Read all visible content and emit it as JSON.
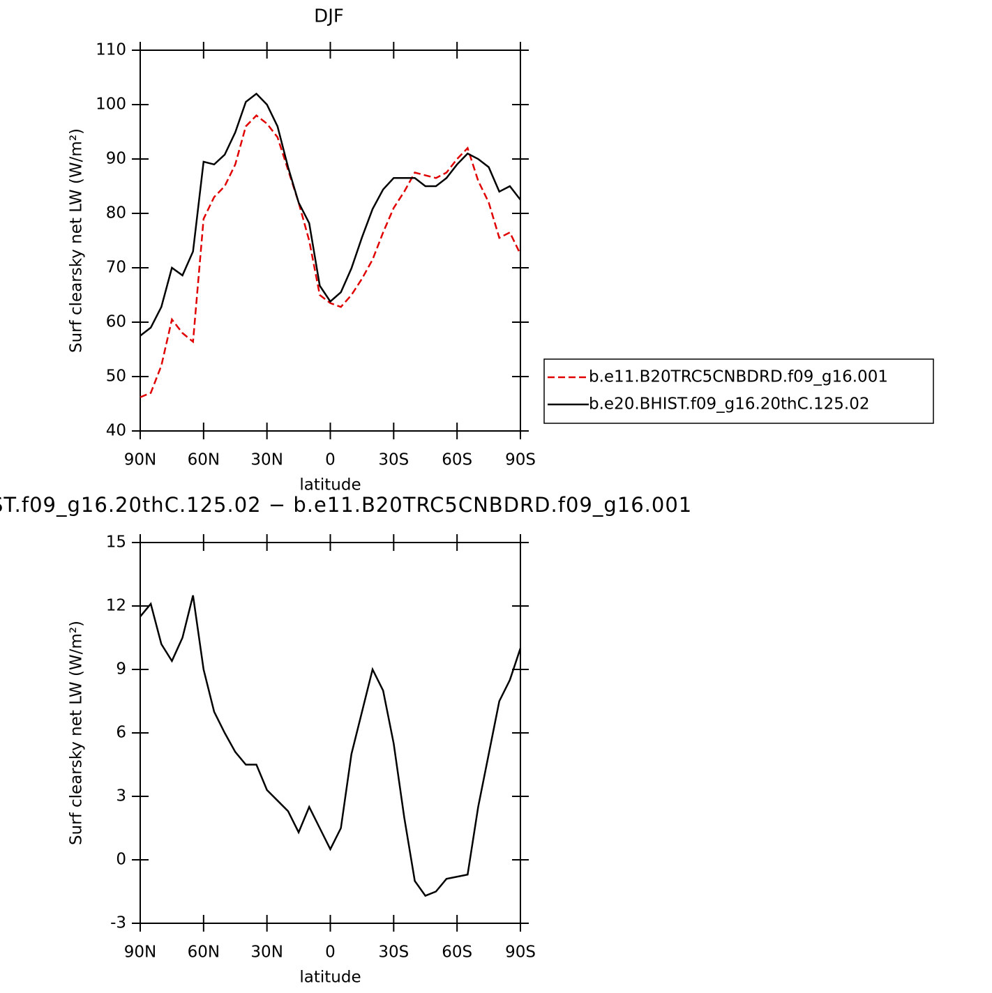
{
  "chart_data": [
    {
      "type": "line",
      "title": "DJF",
      "xlabel": "latitude",
      "ylabel": "Surf clearsky net LW (W/m²)",
      "x": [
        90,
        85,
        80,
        75,
        70,
        65,
        60,
        55,
        50,
        45,
        40,
        35,
        30,
        25,
        20,
        15,
        10,
        5,
        0,
        -5,
        -10,
        -15,
        -20,
        -25,
        -30,
        -35,
        -40,
        -45,
        -50,
        -55,
        -60,
        -65,
        -70,
        -75,
        -80,
        -85,
        -90
      ],
      "series": [
        {
          "name": "b.e11.B20TRC5CNBDRD.f09_g16.001",
          "color": "#e00000",
          "linestyle": "dashed",
          "values": [
            46.2,
            47,
            52,
            60.5,
            58,
            56.4,
            79,
            83,
            85,
            89,
            96,
            98,
            96.5,
            94,
            88,
            82,
            75,
            65,
            63.5,
            62.8,
            65,
            68,
            71.5,
            76.5,
            81,
            84,
            87.5,
            87,
            86.5,
            87.5,
            90,
            92,
            86,
            82,
            75.5,
            76.5,
            72.5
          ]
        },
        {
          "name": "b.e20.BHIST.f09_g16.20thC.125.02",
          "color": "#000000",
          "linestyle": "solid",
          "values": [
            57.5,
            59,
            62.8,
            70,
            68.6,
            73,
            89.5,
            89,
            90.8,
            94.9,
            100.5,
            102,
            100,
            96,
            88.5,
            82,
            78.2,
            66.7,
            63.8,
            65.5,
            69.9,
            75.6,
            80.8,
            84.4,
            86.5,
            86.5,
            86.5,
            85,
            85,
            86.5,
            89,
            91,
            90,
            88.5,
            84,
            85,
            82.5
          ]
        }
      ],
      "xlim": [
        90,
        -90
      ],
      "xticks": [
        {
          "value": 90,
          "label": "90N"
        },
        {
          "value": 60,
          "label": "60N"
        },
        {
          "value": 30,
          "label": "30N"
        },
        0,
        {
          "value": -30,
          "label": "30S"
        },
        {
          "value": -60,
          "label": "60S"
        },
        {
          "value": -90,
          "label": "90S"
        }
      ],
      "ylim": [
        40,
        110
      ],
      "yticks": [
        40,
        50,
        60,
        70,
        80,
        90,
        100,
        110
      ],
      "legend": "right"
    },
    {
      "type": "line",
      "title": "ST.f09_g16.20thC.125.02 − b.e11.B20TRC5CNBDRD.f09_g16.001",
      "xlabel": "latitude",
      "ylabel": "Surf clearsky net LW (W/m²)",
      "x": [
        90,
        85,
        80,
        75,
        70,
        65,
        60,
        55,
        50,
        45,
        40,
        35,
        30,
        25,
        20,
        15,
        10,
        5,
        0,
        -5,
        -10,
        -15,
        -20,
        -25,
        -30,
        -35,
        -40,
        -45,
        -50,
        -55,
        -60,
        -65,
        -70,
        -75,
        -80,
        -85,
        -90
      ],
      "series": [
        {
          "color": "#000000",
          "linestyle": "solid",
          "values": [
            11.5,
            12.1,
            10.2,
            9.4,
            10.5,
            12.5,
            9,
            7,
            6,
            5.1,
            4.5,
            4.5,
            3.3,
            2.8,
            2.3,
            1.3,
            2.5,
            1.5,
            0.5,
            1.5,
            5,
            7,
            9,
            8,
            5.5,
            2,
            -1,
            -1.7,
            -1.5,
            -0.9,
            -0.8,
            -0.7,
            2.5,
            5,
            7.5,
            8.5,
            10
          ]
        }
      ],
      "xlim": [
        90,
        -90
      ],
      "xticks": [
        {
          "value": 90,
          "label": "90N"
        },
        {
          "value": 60,
          "label": "60N"
        },
        {
          "value": 30,
          "label": "30N"
        },
        0,
        {
          "value": -30,
          "label": "30S"
        },
        {
          "value": -60,
          "label": "60S"
        },
        {
          "value": -90,
          "label": "90S"
        }
      ],
      "ylim": [
        -3,
        15
      ],
      "yticks": [
        -3,
        0,
        3,
        6,
        9,
        12,
        15
      ]
    }
  ]
}
